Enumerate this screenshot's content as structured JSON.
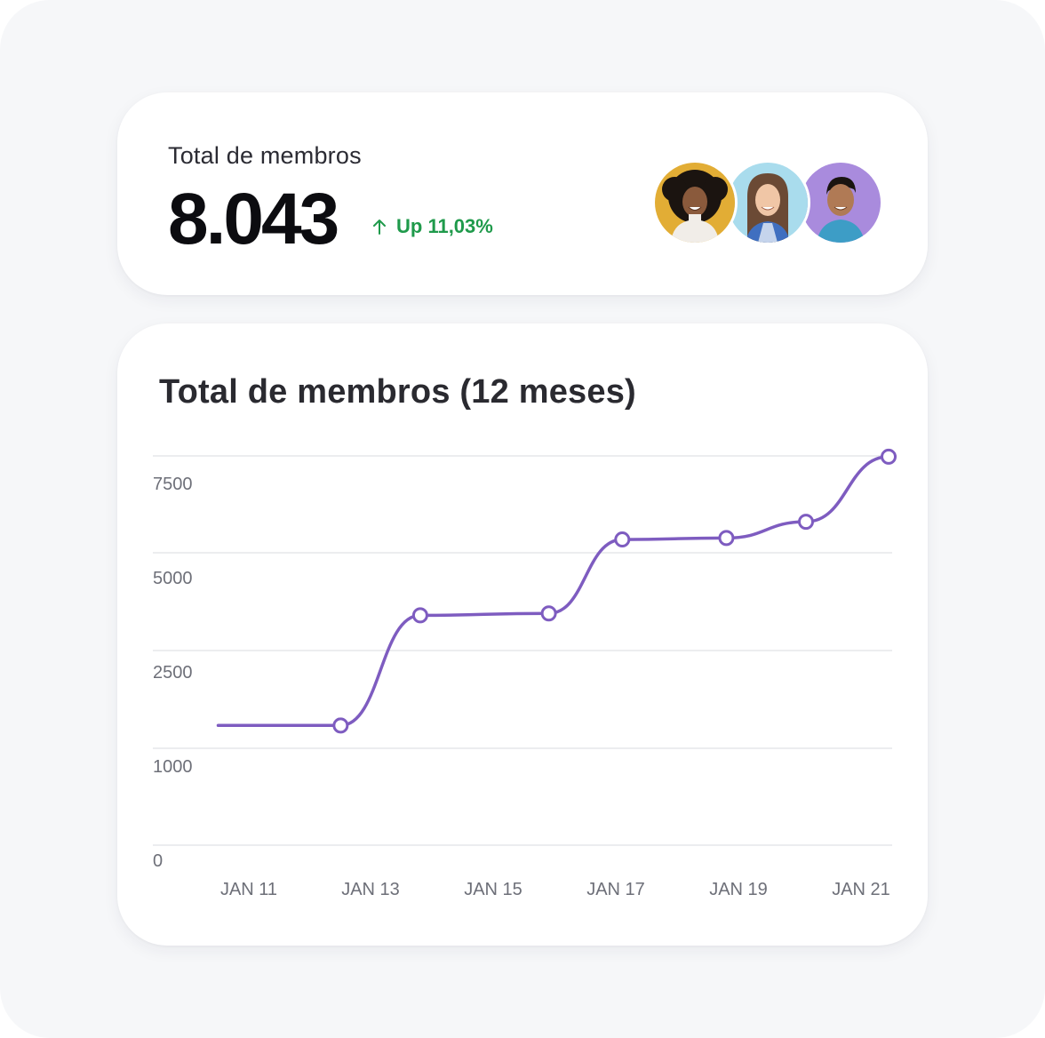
{
  "summary": {
    "label": "Total de membros",
    "value": "8.043",
    "trend_icon": "arrow-up-icon",
    "trend_text": "Up 11,03%",
    "trend_color": "#1f9a4b",
    "avatars": [
      {
        "name": "avatar-woman-curly-hair",
        "bg": "#e2ad35"
      },
      {
        "name": "avatar-woman-long-hair",
        "bg": "#a9dced"
      },
      {
        "name": "avatar-man-short-hair",
        "bg": "#a98bdd"
      }
    ]
  },
  "chart": {
    "title": "Total de membros (12 meses)"
  },
  "chart_data": {
    "type": "line",
    "title": "Total de membros (12 meses)",
    "xlabel": "",
    "ylabel": "",
    "x_ticks": [
      "JAN 11",
      "JAN 13",
      "JAN 15",
      "JAN 17",
      "JAN 19",
      "JAN 21"
    ],
    "y_ticks": [
      "0",
      "1000",
      "2500",
      "5000",
      "7500"
    ],
    "grid": true,
    "line_color": "#7e5cc0",
    "series": [
      {
        "values": [
          {
            "x": 10.5,
            "y": 1350,
            "marker": false
          },
          {
            "x": 12.5,
            "y": 1350,
            "marker": true
          },
          {
            "x": 13.8,
            "y": 3400,
            "marker": true
          },
          {
            "x": 15.9,
            "y": 3450,
            "marker": true
          },
          {
            "x": 17.1,
            "y": 5450,
            "marker": true
          },
          {
            "x": 18.8,
            "y": 5500,
            "marker": true
          },
          {
            "x": 20.1,
            "y": 6050,
            "marker": true
          },
          {
            "x": 21.45,
            "y": 8150,
            "marker": true
          }
        ]
      }
    ]
  }
}
